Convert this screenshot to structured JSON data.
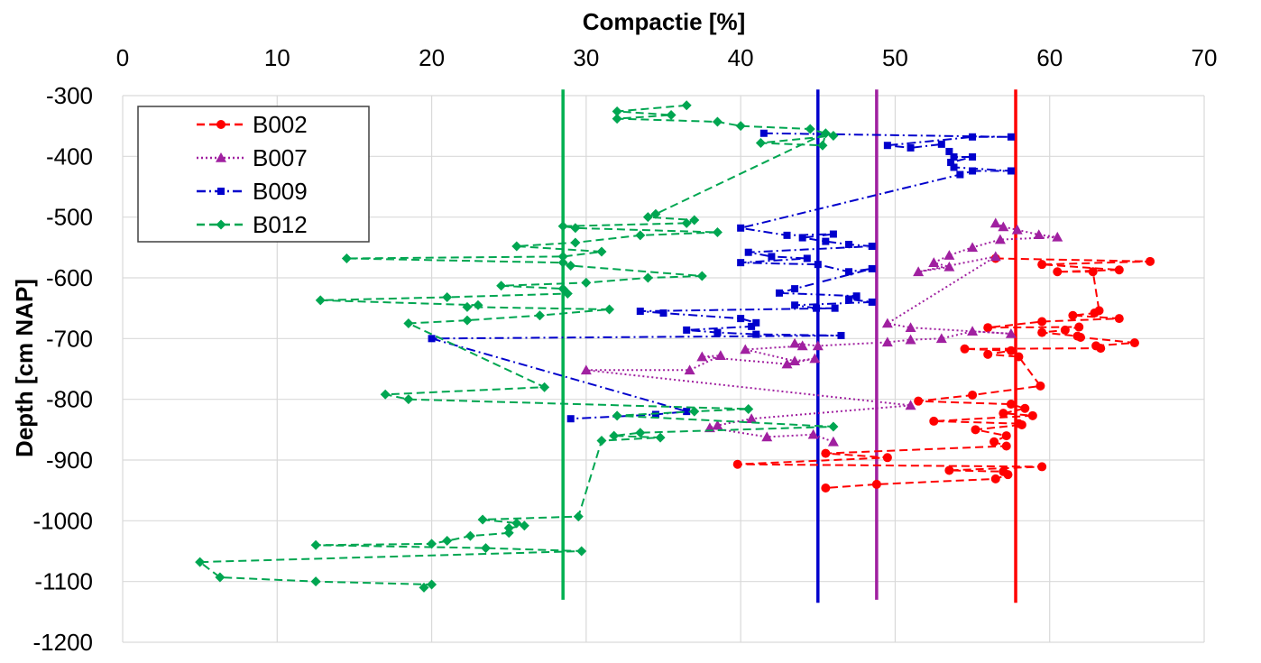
{
  "chart_data": {
    "type": "scatter",
    "title": "Compactie [%]",
    "xlabel": "Compactie [%]",
    "ylabel": "Depth [cm NAP]",
    "xlim": [
      0,
      70
    ],
    "ylim": [
      -1200,
      -300
    ],
    "x_ticks": [
      "0",
      "10",
      "20",
      "30",
      "40",
      "50",
      "60",
      "70"
    ],
    "y_ticks": [
      "-300",
      "-400",
      "-500",
      "-600",
      "-700",
      "-800",
      "-900",
      "-1000",
      "-1100",
      "-1200"
    ],
    "x_axis_position": "top",
    "grid": true,
    "legend_position": "top-left",
    "series": [
      {
        "name": "B002",
        "color": "#ff0000",
        "marker": "circle",
        "line": "dashed",
        "points": [
          [
            56.5,
            -568
          ],
          [
            66.5,
            -573
          ],
          [
            59.5,
            -578
          ],
          [
            64.5,
            -587
          ],
          [
            60.5,
            -590
          ],
          [
            62.8,
            -590
          ],
          [
            63.2,
            -654
          ],
          [
            62.9,
            -658
          ],
          [
            61.5,
            -662
          ],
          [
            64.5,
            -667
          ],
          [
            59.5,
            -672
          ],
          [
            56,
            -682
          ],
          [
            61.9,
            -681
          ],
          [
            61,
            -686
          ],
          [
            59.5,
            -690
          ],
          [
            61.8,
            -696
          ],
          [
            62,
            -698
          ],
          [
            65.5,
            -707
          ],
          [
            63,
            -712
          ],
          [
            63.3,
            -716
          ],
          [
            54.5,
            -717
          ],
          [
            57.5,
            -720
          ],
          [
            56,
            -726
          ],
          [
            58,
            -730
          ],
          [
            59.4,
            -778
          ],
          [
            55,
            -793
          ],
          [
            51.5,
            -803
          ],
          [
            57.5,
            -808
          ],
          [
            58.4,
            -815
          ],
          [
            57,
            -823
          ],
          [
            58.9,
            -827
          ],
          [
            52.5,
            -836
          ],
          [
            58,
            -840
          ],
          [
            58.2,
            -842
          ],
          [
            55.2,
            -850
          ],
          [
            57.2,
            -860
          ],
          [
            56.4,
            -870
          ],
          [
            57.2,
            -877
          ],
          [
            45.5,
            -889
          ],
          [
            49.5,
            -896
          ],
          [
            39.8,
            -907
          ],
          [
            59.5,
            -911
          ],
          [
            53.5,
            -917
          ],
          [
            57,
            -919
          ],
          [
            57.3,
            -924
          ],
          [
            56.5,
            -931
          ],
          [
            48.8,
            -940
          ],
          [
            45.5,
            -946
          ]
        ]
      },
      {
        "name": "B007",
        "color": "#a020a0",
        "marker": "triangle",
        "line": "dotted",
        "points": [
          [
            56.5,
            -510
          ],
          [
            57,
            -516
          ],
          [
            57.9,
            -521
          ],
          [
            59.3,
            -529
          ],
          [
            60.5,
            -533
          ],
          [
            56.8,
            -537
          ],
          [
            55,
            -550
          ],
          [
            53.5,
            -563
          ],
          [
            52.5,
            -575
          ],
          [
            53.5,
            -582
          ],
          [
            51.5,
            -590
          ],
          [
            56.5,
            -565
          ],
          [
            49.5,
            -675
          ],
          [
            51,
            -682
          ],
          [
            57.5,
            -692
          ],
          [
            55,
            -688
          ],
          [
            53,
            -700
          ],
          [
            51,
            -702
          ],
          [
            49.5,
            -706
          ],
          [
            45,
            -712
          ],
          [
            43.5,
            -708
          ],
          [
            44,
            -712
          ],
          [
            40.3,
            -718
          ],
          [
            43.5,
            -737
          ],
          [
            44.8,
            -733
          ],
          [
            43,
            -742
          ],
          [
            37.5,
            -730
          ],
          [
            38.7,
            -728
          ],
          [
            36.7,
            -752
          ],
          [
            30,
            -752
          ],
          [
            51,
            -810
          ],
          [
            40.7,
            -832
          ],
          [
            38.5,
            -843
          ],
          [
            38,
            -847
          ],
          [
            41.7,
            -862
          ],
          [
            44.7,
            -858
          ],
          [
            46,
            -870
          ]
        ]
      },
      {
        "name": "B009",
        "color": "#0000cc",
        "marker": "square",
        "line": "dashdot",
        "points": [
          [
            41.5,
            -362
          ],
          [
            57.5,
            -368
          ],
          [
            55,
            -368
          ],
          [
            49.5,
            -382
          ],
          [
            51,
            -386
          ],
          [
            53,
            -380
          ],
          [
            53.5,
            -392
          ],
          [
            53.8,
            -401
          ],
          [
            55,
            -401
          ],
          [
            53.6,
            -410
          ],
          [
            53.8,
            -418
          ],
          [
            57.5,
            -424
          ],
          [
            55,
            -424
          ],
          [
            54.2,
            -430
          ],
          [
            40,
            -518
          ],
          [
            43,
            -530
          ],
          [
            46,
            -528
          ],
          [
            44,
            -534
          ],
          [
            45.5,
            -540
          ],
          [
            47,
            -545
          ],
          [
            48.5,
            -548
          ],
          [
            40.5,
            -558
          ],
          [
            42,
            -565
          ],
          [
            44.3,
            -568
          ],
          [
            40,
            -575
          ],
          [
            45,
            -578
          ],
          [
            47,
            -590
          ],
          [
            48.5,
            -585
          ],
          [
            43.5,
            -618
          ],
          [
            42.5,
            -625
          ],
          [
            47.5,
            -630
          ],
          [
            47,
            -635
          ],
          [
            48.5,
            -640
          ],
          [
            43.5,
            -645
          ],
          [
            44.9,
            -650
          ],
          [
            46.1,
            -650
          ],
          [
            33.5,
            -655
          ],
          [
            35,
            -658
          ],
          [
            40,
            -667
          ],
          [
            41,
            -674
          ],
          [
            40.7,
            -680
          ],
          [
            36.5,
            -686
          ],
          [
            38.5,
            -690
          ],
          [
            41,
            -693
          ],
          [
            46.5,
            -695
          ],
          [
            20,
            -700
          ],
          [
            36.5,
            -820
          ],
          [
            34.5,
            -825
          ],
          [
            29,
            -832
          ]
        ]
      },
      {
        "name": "B012",
        "color": "#00a651",
        "marker": "diamond",
        "line": "dashed",
        "points": [
          [
            36.5,
            -316
          ],
          [
            32,
            -326
          ],
          [
            35.5,
            -332
          ],
          [
            32,
            -338
          ],
          [
            38.5,
            -343
          ],
          [
            40,
            -350
          ],
          [
            44.5,
            -355
          ],
          [
            46,
            -366
          ],
          [
            41.3,
            -378
          ],
          [
            45.3,
            -382
          ],
          [
            45.5,
            -362
          ],
          [
            34.5,
            -495
          ],
          [
            34,
            -500
          ],
          [
            37,
            -505
          ],
          [
            36.5,
            -510
          ],
          [
            28.5,
            -515
          ],
          [
            29.3,
            -518
          ],
          [
            38.5,
            -525
          ],
          [
            33.5,
            -530
          ],
          [
            29.3,
            -542
          ],
          [
            25.5,
            -548
          ],
          [
            31,
            -557
          ],
          [
            28.5,
            -565
          ],
          [
            14.5,
            -568
          ],
          [
            28.5,
            -575
          ],
          [
            29,
            -580
          ],
          [
            37.5,
            -597
          ],
          [
            34,
            -600
          ],
          [
            30,
            -608
          ],
          [
            24.5,
            -613
          ],
          [
            28.5,
            -618
          ],
          [
            28.8,
            -626
          ],
          [
            21,
            -632
          ],
          [
            12.8,
            -637
          ],
          [
            23,
            -645
          ],
          [
            22.3,
            -648
          ],
          [
            31.5,
            -652
          ],
          [
            27,
            -662
          ],
          [
            22.3,
            -670
          ],
          [
            18.5,
            -675
          ],
          [
            27.3,
            -780
          ],
          [
            17,
            -792
          ],
          [
            18.5,
            -800
          ],
          [
            40.5,
            -816
          ],
          [
            37,
            -820
          ],
          [
            32,
            -827
          ],
          [
            46,
            -845
          ],
          [
            33.5,
            -855
          ],
          [
            31.8,
            -860
          ],
          [
            34.8,
            -863
          ],
          [
            31,
            -868
          ],
          [
            29.5,
            -993
          ],
          [
            23.3,
            -998
          ],
          [
            25.5,
            -1004
          ],
          [
            26,
            -1008
          ],
          [
            25,
            -1012
          ],
          [
            25,
            -1020
          ],
          [
            22.5,
            -1025
          ],
          [
            21,
            -1033
          ],
          [
            20,
            -1038
          ],
          [
            12.5,
            -1040
          ],
          [
            23.5,
            -1045
          ],
          [
            29.7,
            -1050
          ],
          [
            5,
            -1068
          ],
          [
            6.3,
            -1093
          ],
          [
            12.5,
            -1100
          ],
          [
            20,
            -1105
          ],
          [
            19.5,
            -1110
          ]
        ]
      }
    ],
    "reference_lines": [
      {
        "x": 28.5,
        "color": "#00b050",
        "y_from": -290,
        "y_to": -1130
      },
      {
        "x": 45.0,
        "color": "#0000cc",
        "y_from": -290,
        "y_to": -1135
      },
      {
        "x": 48.8,
        "color": "#a020a0",
        "y_from": -290,
        "y_to": -1130
      },
      {
        "x": 57.8,
        "color": "#ff0000",
        "y_from": -290,
        "y_to": -1135
      }
    ],
    "legend": [
      "B002",
      "B007",
      "B009",
      "B012"
    ]
  }
}
